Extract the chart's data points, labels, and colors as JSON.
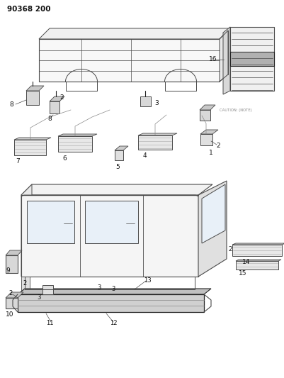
{
  "title": "90368 200",
  "bg_color": "#ffffff",
  "line_color": "#4a4a4a",
  "dark_color": "#222222",
  "label_color": "#111111",
  "note_text": "CAUTION: (NOTE)",
  "fig_width": 4.01,
  "fig_height": 5.33,
  "dpi": 100
}
